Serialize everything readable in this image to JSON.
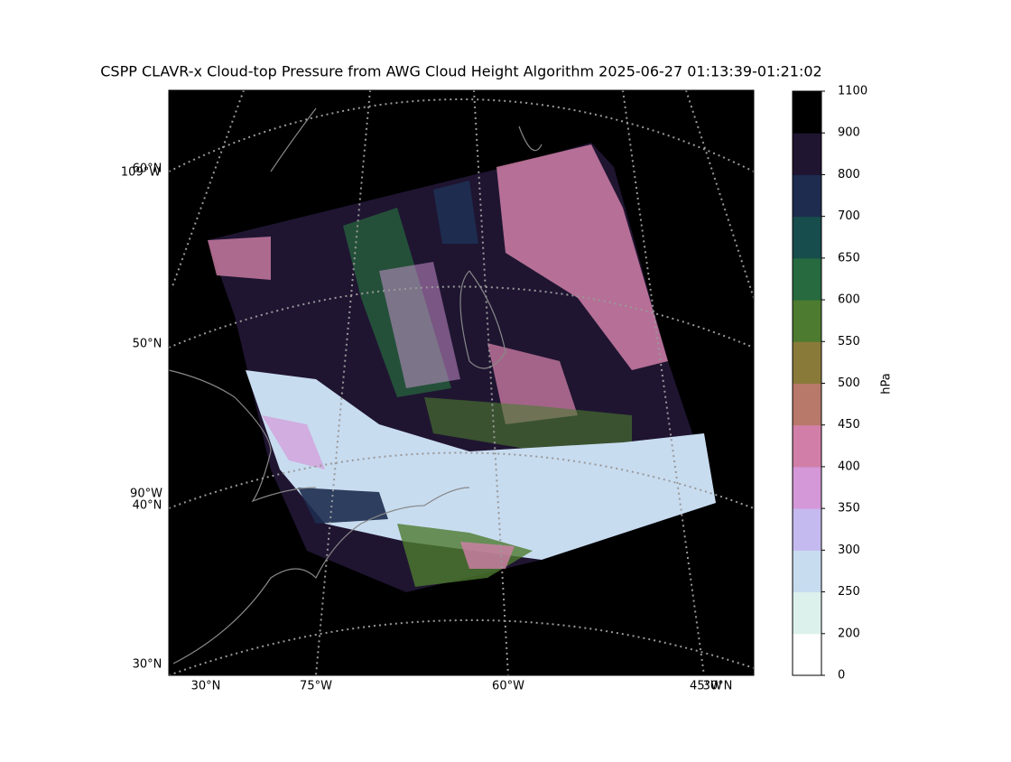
{
  "title": "CSPP CLAVR-x Cloud-top Pressure from AWG Cloud Height Algorithm 2025-06-27 01:13:39-01:21:02",
  "map": {
    "left_labels": [
      "60°N",
      "109°W",
      "50°N",
      "90°W",
      "40°N",
      "30°N"
    ],
    "bottom_labels": [
      "30°N",
      "75°W",
      "60°W",
      "45°W",
      "30°N"
    ]
  },
  "colorbar": {
    "label": "hPa",
    "ticks": [
      0,
      200,
      250,
      300,
      350,
      400,
      450,
      500,
      550,
      600,
      650,
      700,
      800,
      900,
      1100
    ],
    "colors": [
      "#ffffff",
      "#ddf1ec",
      "#c8dcf0",
      "#c5baf0",
      "#d498d8",
      "#d17fa8",
      "#b8786a",
      "#8a7a3a",
      "#4d7b30",
      "#276a3f",
      "#174d4c",
      "#1d2c4f",
      "#1f1531",
      "#000000"
    ]
  }
}
